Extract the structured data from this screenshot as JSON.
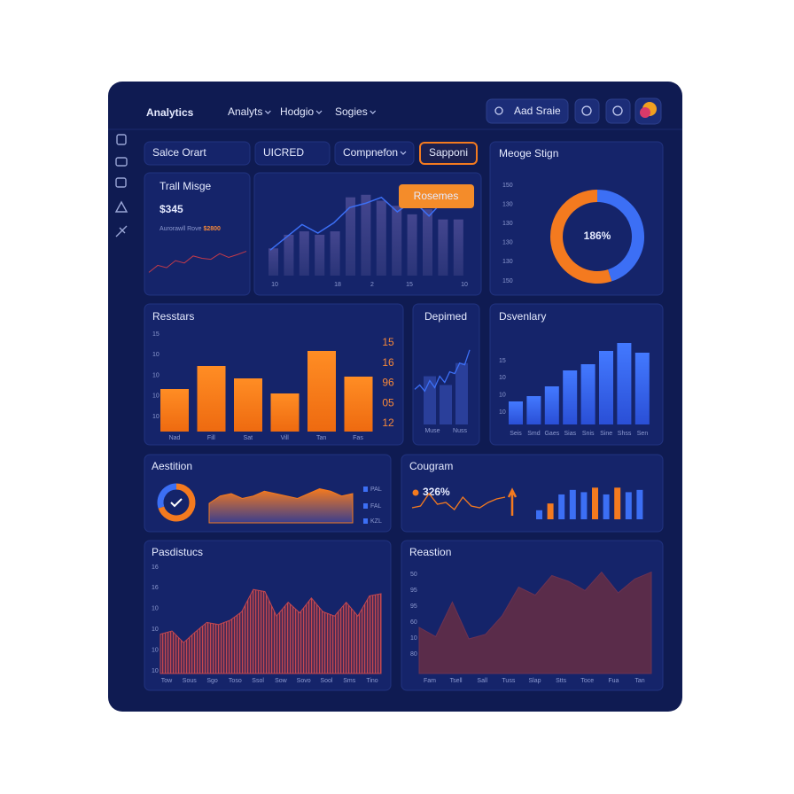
{
  "header": {
    "title": "Analytics",
    "nav": [
      "Analyts",
      "Hodgio",
      "Sogies"
    ],
    "search": "Aad Sraie"
  },
  "tabs": {
    "items": [
      "Salce Orart",
      "UICRED",
      "Compnefon"
    ],
    "button": "Sapponi"
  },
  "summary": {
    "title": "Trall Misge",
    "value": "$345",
    "caption": "Aurorawll Rove",
    "caption_value": "$2800",
    "trend": [
      20,
      35,
      30,
      45,
      40,
      55,
      50,
      48,
      60,
      52,
      58,
      65
    ],
    "ylim": [
      0,
      100
    ]
  },
  "main_chart": {
    "type": "bar",
    "values": [
      32,
      48,
      52,
      48,
      52,
      92,
      95,
      88,
      82,
      72,
      78,
      66,
      66
    ],
    "line": [
      30,
      45,
      60,
      50,
      62,
      80,
      85,
      92,
      75,
      88,
      70,
      90,
      82
    ],
    "ylim": [
      0,
      100
    ],
    "tooltip": "Rosemes",
    "x_labels": [
      "10",
      "18",
      "2",
      "15",
      "10"
    ]
  },
  "gauge": {
    "title": "Meoge Stign",
    "value": "186%",
    "segments": [
      45,
      55
    ],
    "scale_labels": [
      "150",
      "130",
      "130",
      "130",
      "130",
      "150"
    ]
  },
  "resstars": {
    "type": "bar",
    "title": "Resstars",
    "values": [
      48,
      74,
      60,
      43,
      91,
      62
    ],
    "ylim": [
      0,
      100
    ],
    "y_labels": [
      "15",
      "10",
      "10",
      "10",
      "10"
    ],
    "right_labels": [
      "15",
      "16",
      "96",
      "05",
      "12"
    ],
    "x_labels": [
      "Nad",
      "Fill",
      "Sat",
      "Vill",
      "Tan",
      "Fas"
    ]
  },
  "depimed": {
    "title": "Depimed",
    "bars": [
      55,
      45,
      70
    ],
    "line": [
      40,
      45,
      38,
      50,
      42,
      55,
      48,
      60,
      58,
      70,
      68,
      85
    ],
    "ylim": [
      0,
      100
    ],
    "x_labels": [
      "Muse",
      "Nuss"
    ]
  },
  "dsvenlary": {
    "type": "bar",
    "title": "Dsvenlary",
    "values": [
      26,
      32,
      43,
      61,
      68,
      83,
      92,
      81
    ],
    "ylim": [
      0,
      100
    ],
    "y_labels": [
      "15",
      "10",
      "10",
      "10"
    ],
    "x_labels": [
      "Seis",
      "Smd",
      "Gaes",
      "Sias",
      "Snis",
      "Sine",
      "Shss",
      "Sen"
    ]
  },
  "aestition": {
    "title": "Aestition",
    "donut": [
      70,
      30
    ],
    "area": [
      40,
      55,
      60,
      50,
      55,
      65,
      60,
      55,
      50,
      60,
      70,
      65,
      55,
      60
    ],
    "ylim": [
      0,
      100
    ],
    "legend": [
      "PAL",
      "FAL",
      "KZL"
    ]
  },
  "cougram": {
    "title": "Cougram",
    "value": "326%",
    "line": [
      30,
      35,
      70,
      40,
      45,
      25,
      60,
      35,
      30,
      45,
      55,
      60
    ],
    "bars": [
      20,
      35,
      55,
      65,
      60,
      70,
      55,
      70,
      60,
      65
    ],
    "bar_colors": [
      "#3c6ff5",
      "#f47a1f",
      "#3c6ff5",
      "#3c6ff5",
      "#3c6ff5",
      "#f47a1f",
      "#3c6ff5",
      "#f47a1f",
      "#3c6ff5",
      "#3c6ff5"
    ],
    "ylim": [
      0,
      100
    ]
  },
  "pasdistucs": {
    "title": "Pasdistucs",
    "area": [
      37,
      40,
      29,
      39,
      48,
      46,
      50,
      58,
      79,
      77,
      54,
      67,
      57,
      71,
      58,
      54,
      67,
      54,
      73,
      75
    ],
    "ylim": [
      0,
      100
    ],
    "y_labels": [
      "16",
      "16",
      "10",
      "10",
      "10",
      "10"
    ],
    "x_labels": [
      "Tow",
      "Sous",
      "Sgo",
      "Toso",
      "Ssol",
      "Sow",
      "Sovo",
      "Sool",
      "Sms",
      "Tino"
    ]
  },
  "reastion": {
    "title": "Reastion",
    "area": [
      40,
      32,
      62,
      30,
      34,
      50,
      75,
      68,
      85,
      80,
      72,
      88,
      70,
      82,
      88
    ],
    "ylim": [
      0,
      100
    ],
    "y_labels": [
      "50",
      "95",
      "95",
      "60",
      "10",
      "80"
    ],
    "x_labels": [
      "Fam",
      "Tsell",
      "Sall",
      "Tuss",
      "Slap",
      "Stts",
      "Toce",
      "Fua",
      "Tan"
    ]
  }
}
